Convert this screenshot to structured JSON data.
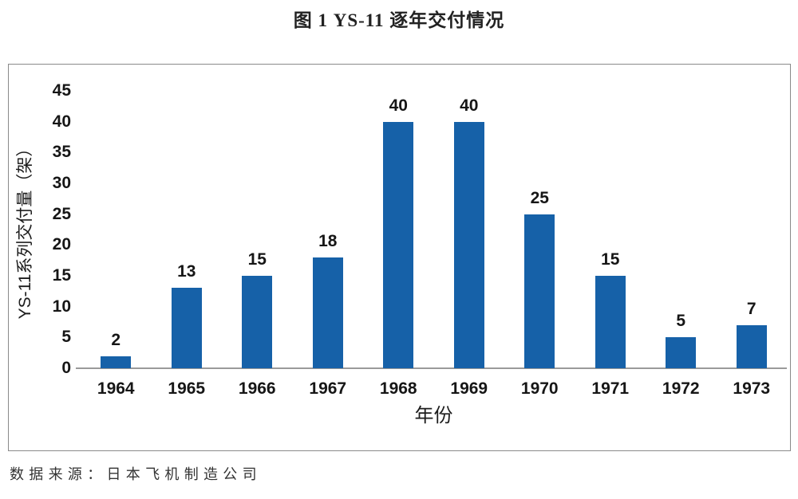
{
  "page": {
    "title": "图 1 YS-11 逐年交付情况",
    "source": "数据来源：日本飞机制造公司"
  },
  "chart_data": {
    "type": "bar",
    "title": "图 1 YS-11 逐年交付情况",
    "categories": [
      "1964",
      "1965",
      "1966",
      "1967",
      "1968",
      "1969",
      "1970",
      "1971",
      "1972",
      "1973"
    ],
    "values": [
      2,
      13,
      15,
      18,
      40,
      40,
      25,
      15,
      5,
      7
    ],
    "xlabel": "年份",
    "ylabel": "YS-11系列交付量（架）",
    "ylim": [
      0,
      45
    ],
    "yticks": [
      0,
      5,
      10,
      15,
      20,
      25,
      30,
      35,
      40,
      45
    ],
    "bar_color": "#1661a8",
    "axis_line_color": "#9a9a9a",
    "frame_border_color": "#8a8a8a",
    "data_labels": true,
    "grid": false,
    "legend": false
  }
}
